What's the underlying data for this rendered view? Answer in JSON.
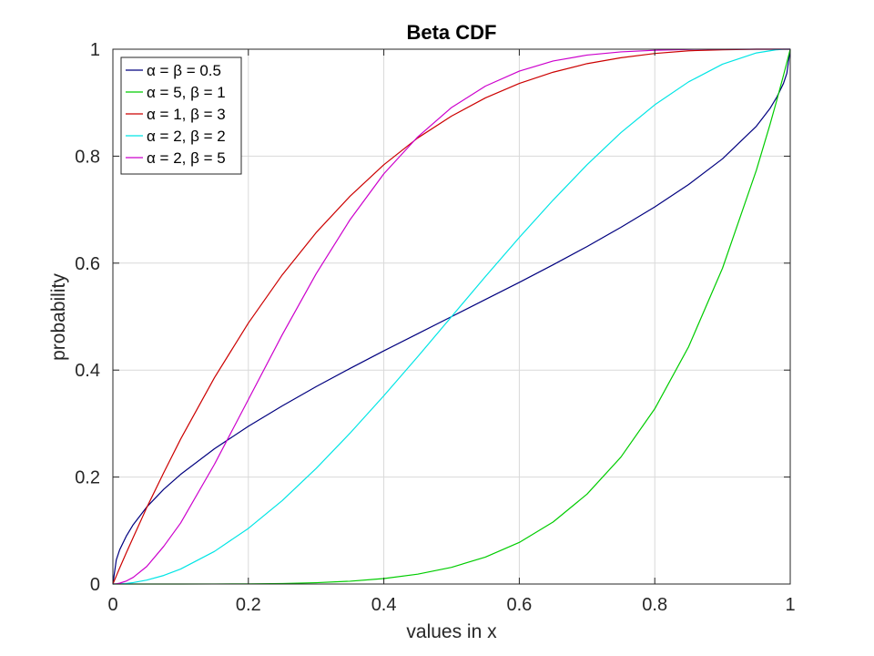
{
  "chart_data": {
    "type": "line",
    "title": "Beta CDF",
    "xlabel": "values in x",
    "ylabel": "probability",
    "xlim": [
      0,
      1
    ],
    "ylim": [
      0,
      1
    ],
    "xticks": [
      0,
      0.2,
      0.4,
      0.6,
      0.8,
      1
    ],
    "xtick_labels": [
      "0",
      "0.2",
      "0.4",
      "0.6",
      "0.8",
      "1"
    ],
    "yticks": [
      0,
      0.2,
      0.4,
      0.6,
      0.8,
      1
    ],
    "ytick_labels": [
      "0",
      "0.2",
      "0.4",
      "0.6",
      "0.8",
      "1"
    ],
    "grid": true,
    "legend_position": "top-left",
    "x": [
      0,
      0.005,
      0.01,
      0.02,
      0.03,
      0.05,
      0.075,
      0.1,
      0.15,
      0.2,
      0.25,
      0.3,
      0.35,
      0.4,
      0.45,
      0.5,
      0.55,
      0.6,
      0.65,
      0.7,
      0.75,
      0.8,
      0.85,
      0.9,
      0.95,
      0.97,
      0.98,
      0.99,
      0.995,
      1
    ],
    "series": [
      {
        "name": "α = β = 0.5",
        "color": "#00007f",
        "values": [
          0,
          0.045,
          0.064,
          0.09,
          0.111,
          0.144,
          0.177,
          0.205,
          0.253,
          0.295,
          0.333,
          0.369,
          0.403,
          0.436,
          0.468,
          0.5,
          0.532,
          0.564,
          0.597,
          0.631,
          0.667,
          0.705,
          0.747,
          0.795,
          0.856,
          0.889,
          0.91,
          0.936,
          0.955,
          1
        ]
      },
      {
        "name": "α = 5, β = 1",
        "color": "#00cc00",
        "values": [
          0,
          0,
          0,
          0,
          0,
          0,
          0,
          1e-05,
          8e-05,
          0.00032,
          0.00098,
          0.00243,
          0.00525,
          0.01024,
          0.01845,
          0.03125,
          0.05033,
          0.07776,
          0.11603,
          0.16807,
          0.2373,
          0.32768,
          0.44371,
          0.59049,
          0.77378,
          0.85873,
          0.90392,
          0.95099,
          0.97524,
          1
        ]
      },
      {
        "name": "α = 1, β = 3",
        "color": "#cc0000",
        "values": [
          0,
          0.015,
          0.03,
          0.059,
          0.087,
          0.143,
          0.208,
          0.271,
          0.386,
          0.488,
          0.578,
          0.657,
          0.725,
          0.784,
          0.834,
          0.875,
          0.909,
          0.936,
          0.957,
          0.973,
          0.984,
          0.992,
          0.997,
          0.999,
          1,
          1,
          1,
          1,
          1,
          1
        ]
      },
      {
        "name": "α = 2, β = 2",
        "color": "#00e5e5",
        "values": [
          0,
          0.0001,
          0.0003,
          0.0012,
          0.0026,
          0.0073,
          0.016,
          0.028,
          0.061,
          0.104,
          0.156,
          0.216,
          0.282,
          0.352,
          0.425,
          0.5,
          0.575,
          0.648,
          0.718,
          0.784,
          0.844,
          0.896,
          0.939,
          0.972,
          0.993,
          0.997,
          0.999,
          1,
          1,
          1
        ]
      },
      {
        "name": "α = 2, β = 5",
        "color": "#cc00cc",
        "values": [
          0,
          0.0005,
          0.0015,
          0.0057,
          0.0125,
          0.0328,
          0.0704,
          0.114,
          0.224,
          0.345,
          0.466,
          0.58,
          0.681,
          0.767,
          0.836,
          0.891,
          0.931,
          0.959,
          0.978,
          0.989,
          0.995,
          0.998,
          0.9996,
          0.9999,
          1,
          1,
          1,
          1,
          1,
          1
        ]
      }
    ]
  }
}
